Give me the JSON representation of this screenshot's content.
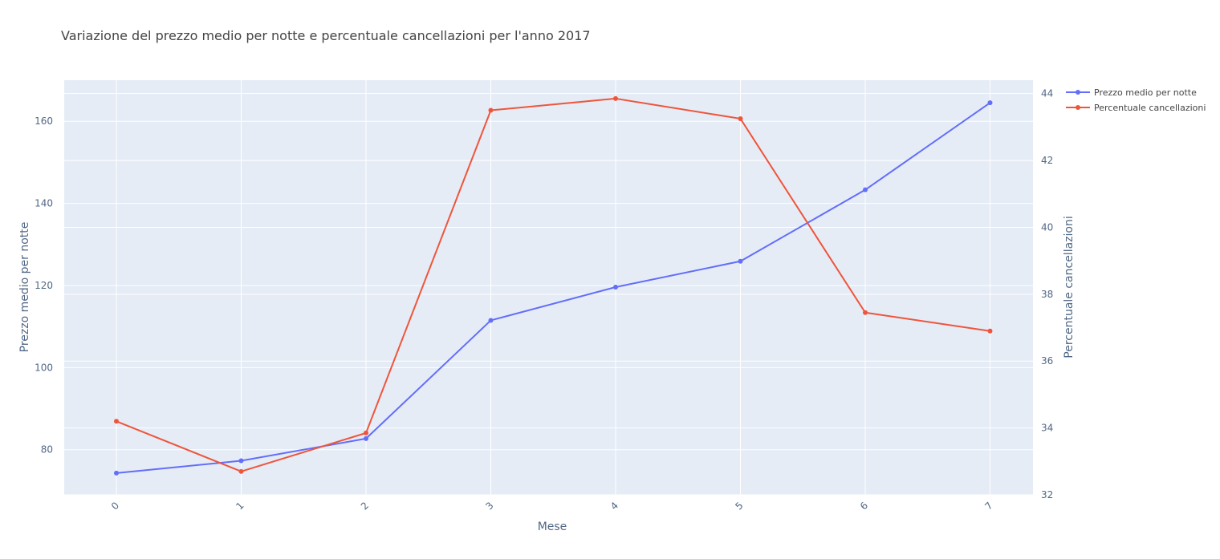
{
  "chart_data": {
    "type": "line",
    "title": "Variazione del prezzo medio per notte e percentuale cancellazioni per l'anno 2017",
    "xlabel": "Mese",
    "ylabel": "Prezzo medio per notte",
    "y2label": "Percentuale cancellazioni",
    "x": [
      0,
      1,
      2,
      3,
      4,
      5,
      6,
      7
    ],
    "x_ticks": [
      "0",
      "1",
      "2",
      "3",
      "4",
      "5",
      "6",
      "7"
    ],
    "ylim": [
      69,
      170
    ],
    "y_ticks": [
      80,
      100,
      120,
      140,
      160
    ],
    "y2lim": [
      32,
      44.4
    ],
    "y2_ticks": [
      32,
      34,
      36,
      38,
      40,
      42,
      44
    ],
    "grid": true,
    "legend_position": "top-right",
    "series": [
      {
        "name": "Prezzo medio per notte",
        "axis": "left",
        "color": "#636efa",
        "values": [
          74.3,
          77.3,
          82.7,
          111.5,
          119.6,
          125.9,
          143.3,
          164.5
        ]
      },
      {
        "name": "Percentuale cancellazioni",
        "axis": "right",
        "color": "#ef553b",
        "values": [
          34.2,
          32.7,
          33.85,
          43.5,
          43.85,
          43.25,
          37.45,
          36.9
        ]
      }
    ]
  }
}
